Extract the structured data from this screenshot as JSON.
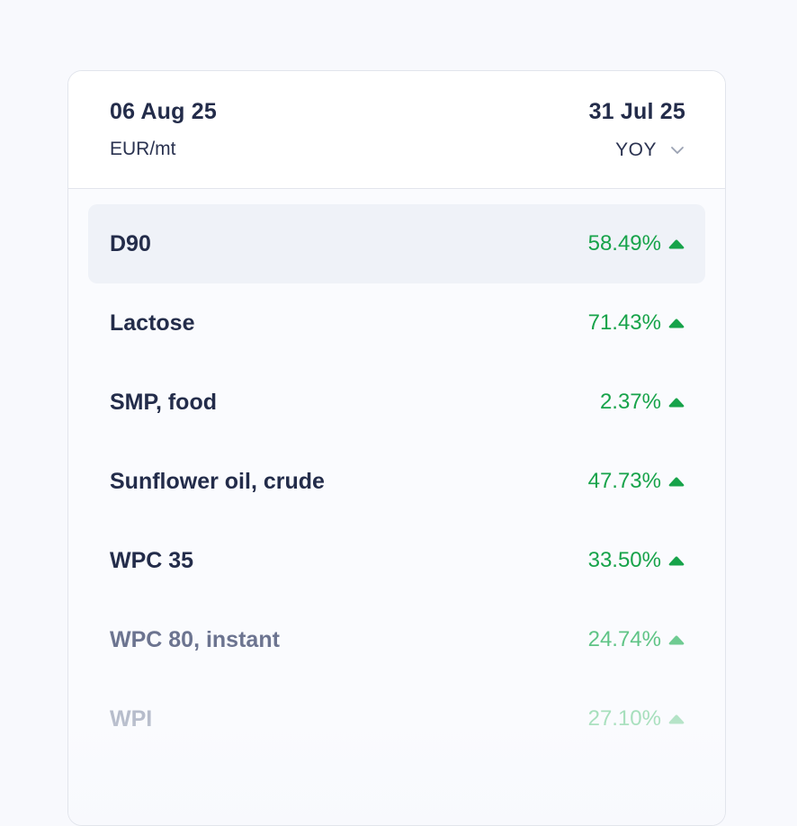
{
  "header": {
    "date_from": "06 Aug 25",
    "unit": "EUR/mt",
    "date_to": "31 Jul 25",
    "period": "YOY"
  },
  "colors": {
    "positive": "#17a34a",
    "text_primary": "#232c4a",
    "active_row_bg": "#eff2f8"
  },
  "rows": [
    {
      "name": "D90",
      "value": "58.49%",
      "trend": "up-icon"
    },
    {
      "name": "Lactose",
      "value": "71.43%",
      "trend": "up-icon"
    },
    {
      "name": "SMP, food",
      "value": "2.37%",
      "trend": "up-icon"
    },
    {
      "name": "Sunflower oil, crude",
      "value": "47.73%",
      "trend": "up-icon"
    },
    {
      "name": "WPC 35",
      "value": "33.50%",
      "trend": "up-icon"
    },
    {
      "name": "WPC 80, instant",
      "value": "24.74%",
      "trend": "up-icon"
    },
    {
      "name": "WPI",
      "value": "27.10%",
      "trend": "up-icon"
    }
  ]
}
